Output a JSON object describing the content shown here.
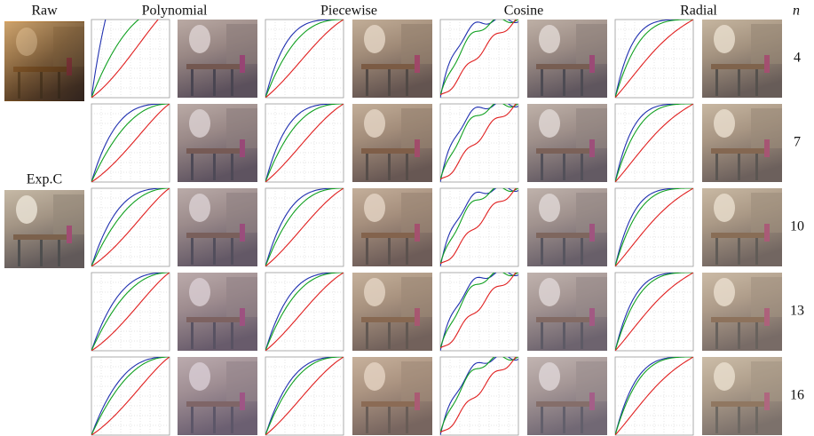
{
  "labels": {
    "raw": "Raw",
    "expc": "Exp.C",
    "n": "n"
  },
  "columns": [
    "Polynomial",
    "Piecewise",
    "Cosine",
    "Radial"
  ],
  "rows": [
    4,
    7,
    10,
    13,
    16
  ]
}
